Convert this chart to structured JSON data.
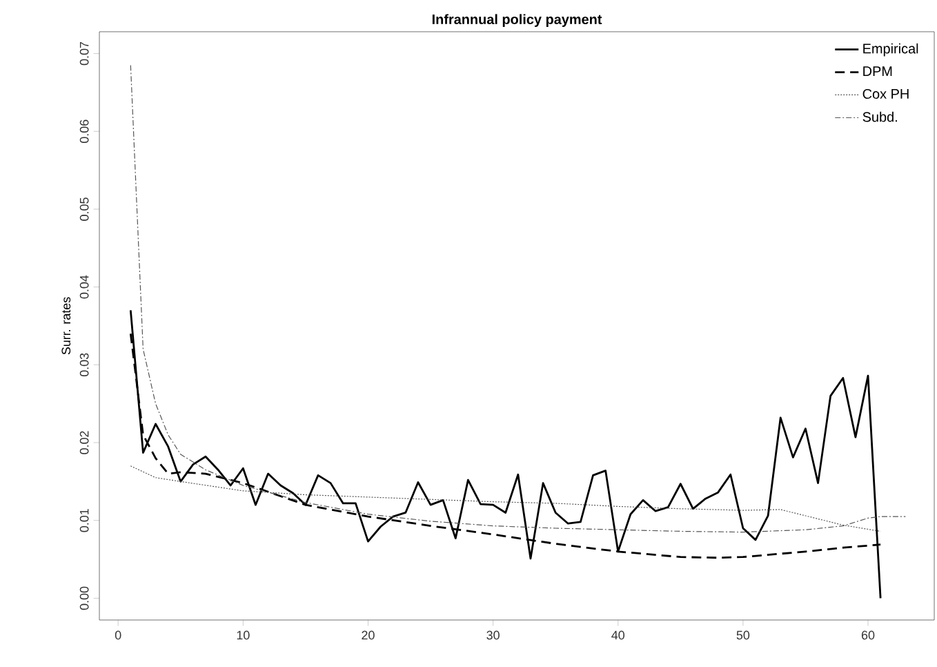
{
  "chart_data": {
    "type": "line",
    "title": "Infrannual policy payment",
    "ylabel": "Surr. rates",
    "xlim": [
      -1.5,
      65.3
    ],
    "ylim": [
      -0.0028,
      0.0728
    ],
    "xticks": [
      0,
      10,
      20,
      30,
      40,
      50,
      60
    ],
    "yticks": [
      {
        "value": 0,
        "label": "0.00"
      },
      0.01,
      0.02,
      0.03,
      0.04,
      0.05,
      0.06,
      0.07
    ],
    "legend": "top right",
    "series": [
      {
        "name": "Empirical",
        "color": "#000000",
        "line_style": "solid",
        "x": [
          1,
          2,
          3,
          4,
          5,
          6,
          7,
          8,
          9,
          10,
          11,
          12,
          13,
          14,
          15,
          16,
          17,
          18,
          19,
          20,
          21,
          22,
          23,
          24,
          25,
          26,
          27,
          28,
          29,
          30,
          31,
          32,
          33,
          34,
          35,
          36,
          37,
          38,
          39,
          40,
          41,
          42,
          43,
          44,
          45,
          46,
          47,
          48,
          49,
          50,
          51,
          52,
          53,
          54,
          55,
          56,
          57,
          58,
          59,
          60,
          61
        ],
        "values": [
          0.037,
          0.0187,
          0.0224,
          0.0195,
          0.015,
          0.0172,
          0.0182,
          0.0165,
          0.0145,
          0.0167,
          0.012,
          0.016,
          0.0145,
          0.0135,
          0.012,
          0.0158,
          0.0148,
          0.0122,
          0.0122,
          0.0073,
          0.0092,
          0.0105,
          0.011,
          0.0149,
          0.012,
          0.0126,
          0.0077,
          0.0152,
          0.0121,
          0.012,
          0.011,
          0.0159,
          0.0051,
          0.0148,
          0.011,
          0.0096,
          0.0098,
          0.0158,
          0.0164,
          0.006,
          0.0108,
          0.0126,
          0.0112,
          0.0117,
          0.0147,
          0.0115,
          0.0128,
          0.0136,
          0.0159,
          0.009,
          0.0075,
          0.0106,
          0.0232,
          0.0181,
          0.0218,
          0.0148,
          0.026,
          0.0283,
          0.0207,
          0.0286,
          0.0
        ]
      },
      {
        "name": "DPM",
        "color": "#000000",
        "line_style": "dashed",
        "x": [
          1,
          2,
          3,
          4,
          5,
          7,
          10,
          15,
          20,
          25,
          30,
          35,
          40,
          45,
          48,
          50,
          55,
          58,
          61
        ],
        "values": [
          0.034,
          0.021,
          0.018,
          0.016,
          0.0162,
          0.016,
          0.0148,
          0.012,
          0.0105,
          0.0093,
          0.0082,
          0.007,
          0.006,
          0.0053,
          0.0052,
          0.0053,
          0.006,
          0.0065,
          0.0069
        ]
      },
      {
        "name": "Cox PH",
        "color": "#555555",
        "line_style": "dotted",
        "x": [
          1,
          3,
          5,
          10,
          15,
          20,
          25,
          30,
          35,
          40,
          45,
          50,
          53,
          58,
          61
        ],
        "values": [
          0.017,
          0.0155,
          0.015,
          0.0138,
          0.0133,
          0.013,
          0.0127,
          0.0124,
          0.0122,
          0.0118,
          0.0115,
          0.0113,
          0.0114,
          0.0094,
          0.0086
        ]
      },
      {
        "name": "Subd.",
        "color": "#555555",
        "line_style": "dashdot",
        "x": [
          1,
          2,
          3,
          4,
          5,
          7,
          10,
          15,
          20,
          25,
          30,
          35,
          40,
          45,
          50,
          55,
          58,
          60,
          61,
          63
        ],
        "values": [
          0.0685,
          0.032,
          0.025,
          0.021,
          0.0185,
          0.0165,
          0.0145,
          0.0123,
          0.0108,
          0.0099,
          0.0093,
          0.009,
          0.0088,
          0.0086,
          0.0085,
          0.0088,
          0.0093,
          0.0103,
          0.0105,
          0.0105
        ]
      }
    ]
  }
}
